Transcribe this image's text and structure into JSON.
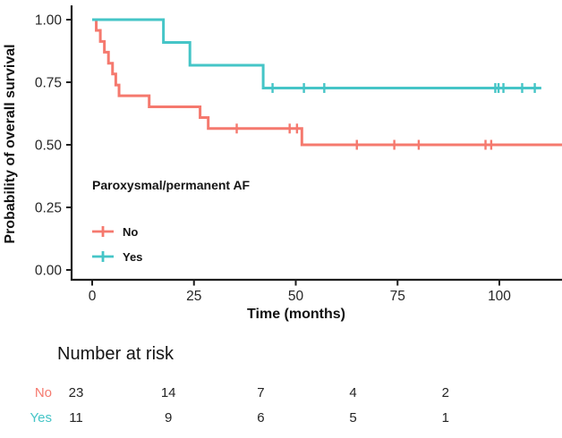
{
  "chart_data": {
    "type": "line",
    "subtype": "kaplan-meier-step",
    "title": "",
    "xlabel": "Time (months)",
    "ylabel": "Probability of overall survival",
    "xlim": [
      0,
      115.5
    ],
    "ylim": [
      0,
      1
    ],
    "xticks": [
      0,
      25,
      50,
      75,
      100
    ],
    "ytick_labels": [
      "1.00",
      "0.75",
      "0.50",
      "0.25",
      "0.00"
    ],
    "grid": false,
    "legend": {
      "title": "Paroxysmal/permanent AF",
      "position": "inside-bottom-left",
      "entries": [
        {
          "label": "No",
          "color": "#F5796E"
        },
        {
          "label": "Yes",
          "color": "#45C5C7"
        }
      ]
    },
    "series": [
      {
        "name": "No",
        "color": "#F5796E",
        "start_value": 1.0,
        "steps": [
          [
            1,
            0.957
          ],
          [
            2,
            0.913
          ],
          [
            3,
            0.87
          ],
          [
            4,
            0.826
          ],
          [
            5,
            0.783
          ],
          [
            5.8,
            0.739
          ],
          [
            6.6,
            0.696
          ],
          [
            14,
            0.652
          ],
          [
            26.5,
            0.609
          ],
          [
            28.5,
            0.565
          ],
          [
            51.5,
            0.5
          ]
        ],
        "end_time": 115.5,
        "censor_times": [
          35.5,
          48.5,
          50.3,
          65,
          74.2,
          80.2,
          96.6,
          98
        ]
      },
      {
        "name": "Yes",
        "color": "#45C5C7",
        "start_value": 1.0,
        "steps": [
          [
            17.5,
            0.909
          ],
          [
            24,
            0.818
          ],
          [
            42,
            0.727
          ]
        ],
        "end_time": 110.3,
        "censor_times": [
          44.3,
          52,
          57,
          99,
          99.8,
          101,
          105.6,
          108.7
        ]
      }
    ],
    "axis_color": "#1d1d1d",
    "tick_label_color": "#262626"
  },
  "risk_table": {
    "header": "Number at risk",
    "times": [
      0,
      25,
      50,
      75,
      100
    ],
    "rows": [
      {
        "label": "No",
        "color": "#F5796E",
        "values": [
          "23",
          "14",
          "7",
          "4",
          "2"
        ]
      },
      {
        "label": "Yes",
        "color": "#45C5C7",
        "values": [
          "11",
          "9",
          "6",
          "5",
          "1"
        ]
      }
    ]
  }
}
